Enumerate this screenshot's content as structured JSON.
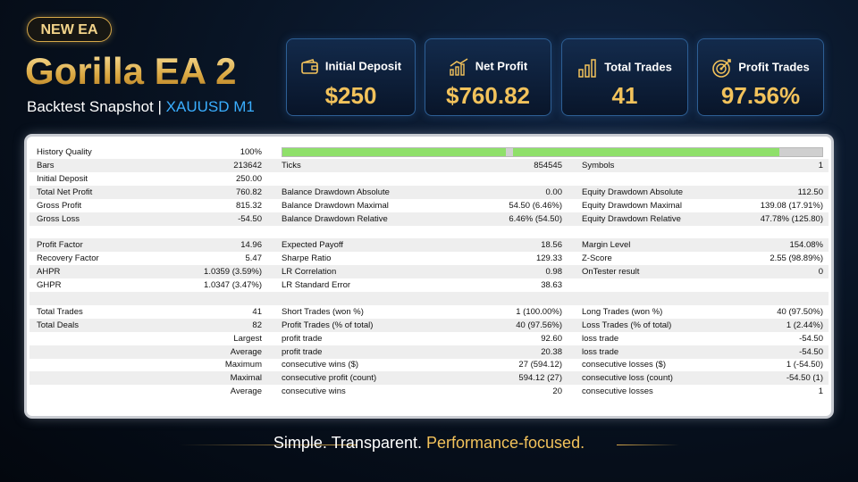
{
  "header": {
    "badge": "NEW EA",
    "title": "Gorilla EA 2",
    "subtitle": "Backtest Snapshot |",
    "symbol": "XAUUSD M1"
  },
  "stats": [
    {
      "label": "Initial Deposit",
      "value": "$250"
    },
    {
      "label": "Net Profit",
      "value": "$760.82"
    },
    {
      "label": "Total Trades",
      "value": "41"
    },
    {
      "label": "Profit Trades",
      "value": "97.56%"
    }
  ],
  "report": {
    "history_quality": {
      "label": "History Quality",
      "value": "100%"
    },
    "rows": [
      [
        {
          "label": "Bars",
          "value": "213642"
        },
        {
          "label": "Ticks",
          "value": "854545"
        },
        {
          "label": "Symbols",
          "value": "1"
        }
      ],
      [
        {
          "label": "Initial Deposit",
          "value": "250.00"
        }
      ],
      [
        {
          "label": "Total Net Profit",
          "value": "760.82"
        },
        {
          "label": "Balance Drawdown Absolute",
          "value": "0.00"
        },
        {
          "label": "Equity Drawdown Absolute",
          "value": "112.50"
        }
      ],
      [
        {
          "label": "Gross Profit",
          "value": "815.32"
        },
        {
          "label": "Balance Drawdown Maximal",
          "value": "54.50 (6.46%)"
        },
        {
          "label": "Equity Drawdown Maximal",
          "value": "139.08 (17.91%)"
        }
      ],
      [
        {
          "label": "Gross Loss",
          "value": "-54.50"
        },
        {
          "label": "Balance Drawdown Relative",
          "value": "6.46% (54.50)"
        },
        {
          "label": "Equity Drawdown Relative",
          "value": "47.78% (125.80)"
        }
      ],
      [],
      [
        {
          "label": "Profit Factor",
          "value": "14.96"
        },
        {
          "label": "Expected Payoff",
          "value": "18.56"
        },
        {
          "label": "Margin Level",
          "value": "154.08%"
        }
      ],
      [
        {
          "label": "Recovery Factor",
          "value": "5.47"
        },
        {
          "label": "Sharpe Ratio",
          "value": "129.33"
        },
        {
          "label": "Z-Score",
          "value": "2.55 (98.89%)"
        }
      ],
      [
        {
          "label": "AHPR",
          "value": "1.0359 (3.59%)"
        },
        {
          "label": "LR Correlation",
          "value": "0.98"
        },
        {
          "label": "OnTester result",
          "value": "0"
        }
      ],
      [
        {
          "label": "GHPR",
          "value": "1.0347 (3.47%)"
        },
        {
          "label": "LR Standard Error",
          "value": "38.63"
        }
      ],
      [],
      [
        {
          "label": "Total Trades",
          "value": "41"
        },
        {
          "label": "Short Trades (won %)",
          "value": "1 (100.00%)"
        },
        {
          "label": "Long Trades (won %)",
          "value": "40 (97.50%)"
        }
      ],
      [
        {
          "label": "Total Deals",
          "value": "82"
        },
        {
          "label": "Profit Trades (% of total)",
          "value": "40 (97.56%)"
        },
        {
          "label": "Loss Trades (% of total)",
          "value": "1 (2.44%)"
        }
      ],
      [
        {
          "label": "Largest"
        },
        {
          "label": "profit trade",
          "value": "92.60"
        },
        {
          "label": "loss trade",
          "value": "-54.50"
        }
      ],
      [
        {
          "label": "Average"
        },
        {
          "label": "profit trade",
          "value": "20.38"
        },
        {
          "label": "loss trade",
          "value": "-54.50"
        }
      ],
      [
        {
          "label": "Maximum"
        },
        {
          "label": "consecutive wins ($)",
          "value": "27 (594.12)"
        },
        {
          "label": "consecutive losses ($)",
          "value": "1 (-54.50)"
        }
      ],
      [
        {
          "label": "Maximal"
        },
        {
          "label": "consecutive profit (count)",
          "value": "594.12 (27)"
        },
        {
          "label": "consecutive loss (count)",
          "value": "-54.50 (1)"
        }
      ],
      [
        {
          "label": "Average"
        },
        {
          "label": "consecutive wins",
          "value": "20"
        },
        {
          "label": "consecutive losses",
          "value": "1"
        }
      ]
    ]
  },
  "footer": {
    "tagline": "Simple. Transparent.",
    "highlight": "Performance-focused."
  }
}
